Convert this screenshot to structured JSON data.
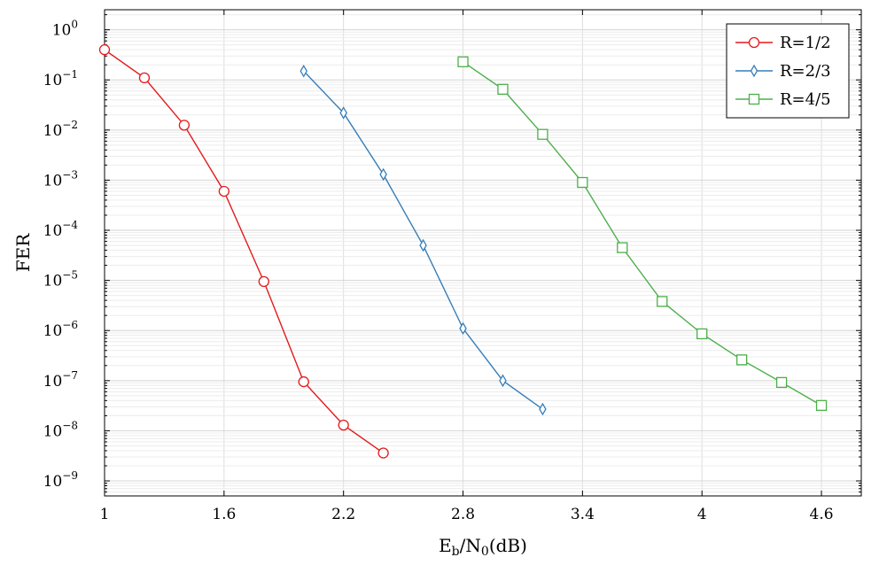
{
  "chart_data": {
    "type": "line",
    "xlabel": "Eb/N0(dB)",
    "ylabel": "FER",
    "xlim": [
      1,
      4.8
    ],
    "ylim_exp": [
      -9.3,
      0.4
    ],
    "yscale": "log",
    "grid": true,
    "legend_position": "top-right",
    "x_ticks": [
      1,
      1.6,
      2.2,
      2.8,
      3.4,
      4,
      4.6
    ],
    "x_tick_labels": [
      "1",
      "1.6",
      "2.2",
      "2.8",
      "3.4",
      "4",
      "4.6"
    ],
    "y_tick_exponents": [
      0,
      -1,
      -2,
      -3,
      -4,
      -5,
      -6,
      -7,
      -8,
      -9
    ],
    "series": [
      {
        "name": "R=1/2",
        "color": "#e41a1c",
        "marker": "circle",
        "x": [
          1.0,
          1.2,
          1.4,
          1.6,
          1.8,
          2.0,
          2.2,
          2.4
        ],
        "y": [
          0.4,
          0.11,
          0.0125,
          0.0006,
          9.5e-06,
          9.5e-08,
          1.3e-08,
          3.6e-09
        ]
      },
      {
        "name": "R=2/3",
        "color": "#377eb8",
        "marker": "diamond",
        "x": [
          2.0,
          2.2,
          2.4,
          2.6,
          2.8,
          3.0,
          3.2
        ],
        "y": [
          0.15,
          0.022,
          0.0013,
          5e-05,
          1.1e-06,
          1e-07,
          2.7e-08
        ]
      },
      {
        "name": "R=4/5",
        "color": "#4daf4a",
        "marker": "square",
        "x": [
          2.8,
          3.0,
          3.2,
          3.4,
          3.6,
          3.8,
          4.0,
          4.2,
          4.4,
          4.6
        ],
        "y": [
          0.23,
          0.065,
          0.0082,
          0.0009,
          4.5e-05,
          3.8e-06,
          8.6e-07,
          2.6e-07,
          9.2e-08,
          3.2e-08
        ]
      }
    ]
  }
}
